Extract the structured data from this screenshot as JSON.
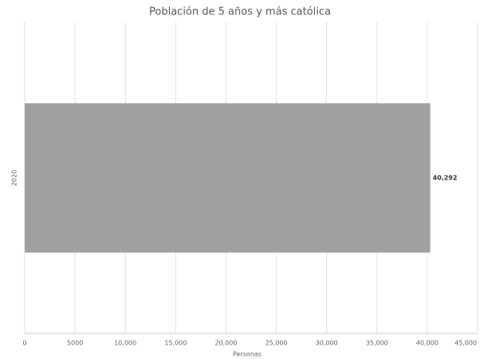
{
  "chart_data": {
    "type": "hbar",
    "title": "Población de 5 años y más católica",
    "categories": [
      "2020"
    ],
    "values": [
      40292
    ],
    "value_labels": [
      "40,292"
    ],
    "color": "#a0a0a0",
    "xlabel": "Personas",
    "xlim": [
      0,
      45000
    ],
    "xticks": [
      0,
      5000,
      {
        "value": 10000,
        "label": "10,000"
      },
      {
        "value": 15000,
        "label": "15,000"
      },
      {
        "value": 20000,
        "label": "20,000"
      },
      {
        "value": 25000,
        "label": "25,000"
      },
      {
        "value": 30000,
        "label": "30,000"
      },
      {
        "value": 35000,
        "label": "35,000"
      },
      {
        "value": 40000,
        "label": "40,000"
      },
      {
        "value": 45000,
        "label": "45,000"
      }
    ],
    "grid": true
  }
}
